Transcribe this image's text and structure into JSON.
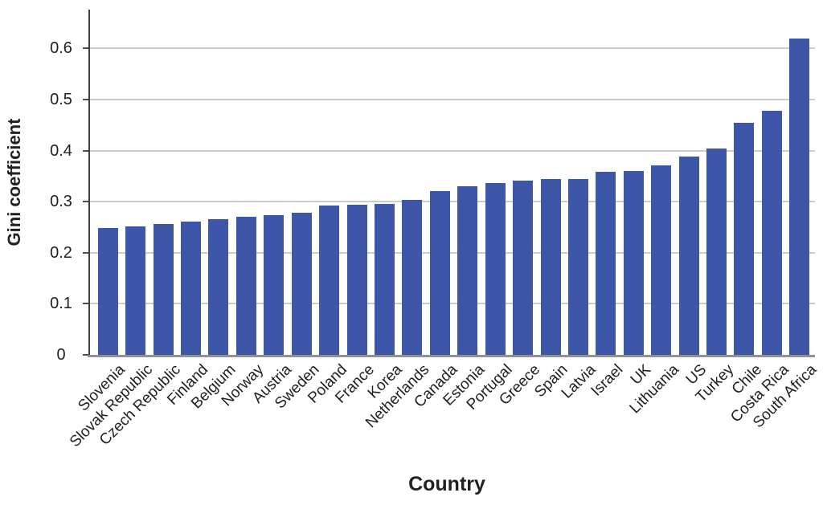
{
  "chart_data": {
    "type": "bar",
    "title": "",
    "xlabel": "Country",
    "ylabel": "Gini coefficient",
    "categories": [
      "Slovenia",
      "Slovak Republic",
      "Czech Republic",
      "Finland",
      "Belgium",
      "Norway",
      "Austria",
      "Sweden",
      "Poland",
      "France",
      "Korea",
      "Netherlands",
      "Canada",
      "Estonia",
      "Portugal",
      "Greece",
      "Spain",
      "Latvia",
      "Israel",
      "UK",
      "Lithuania",
      "US",
      "Turkey",
      "Chile",
      "Costa Rica",
      "South Africa"
    ],
    "values": [
      0.249,
      0.252,
      0.257,
      0.261,
      0.266,
      0.271,
      0.274,
      0.278,
      0.292,
      0.294,
      0.296,
      0.303,
      0.32,
      0.33,
      0.336,
      0.341,
      0.345,
      0.345,
      0.359,
      0.36,
      0.371,
      0.389,
      0.404,
      0.455,
      0.478,
      0.62
    ],
    "yticks": [
      0,
      0.1,
      0.2,
      0.3,
      0.4,
      0.5,
      0.6
    ],
    "ytick_labels": [
      "0",
      "0.1",
      "0.2",
      "0.3",
      "0.4",
      "0.5",
      "0.6"
    ],
    "ylim": [
      0,
      0.68
    ],
    "grid": true,
    "legend": "none",
    "bar_color": "#3E56A8",
    "gridline_color": "#CBCCCE",
    "axis_color": "#3F4041",
    "baseline_color": "#8F9194",
    "text_color": "#232021"
  }
}
